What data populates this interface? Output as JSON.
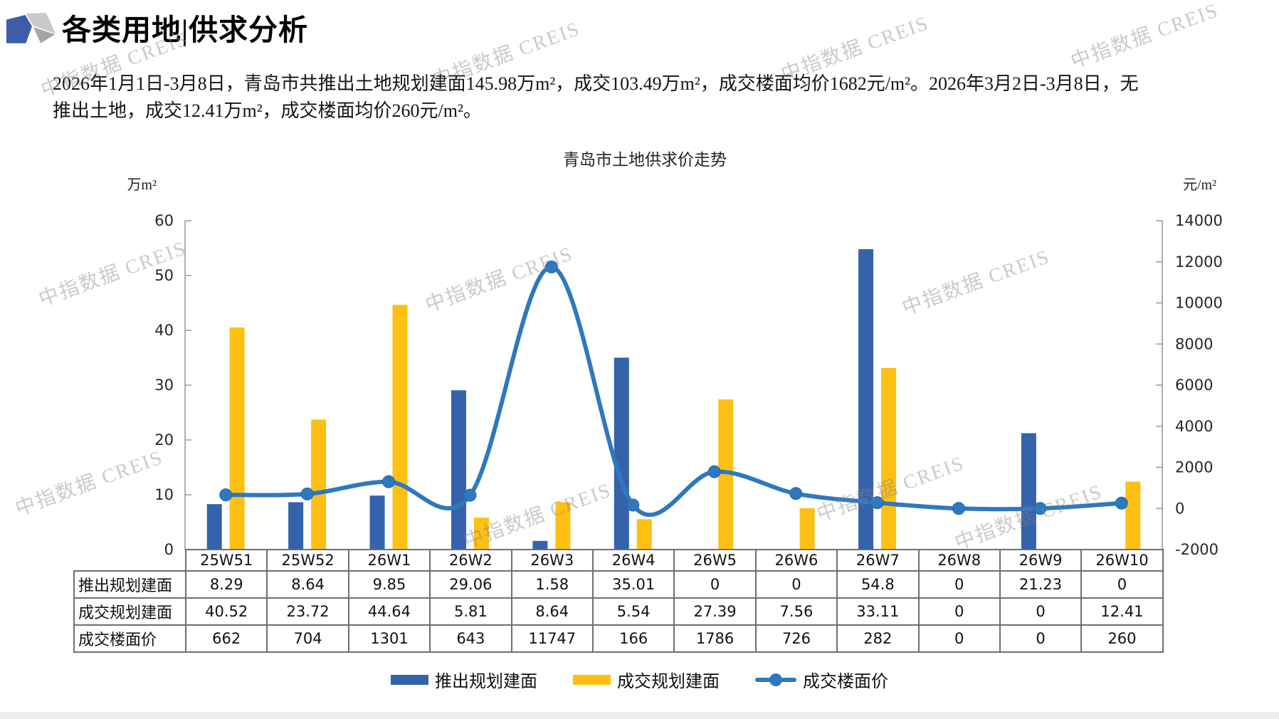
{
  "header": {
    "title": "各类用地|供求分析"
  },
  "description": {
    "lines": [
      "2026年1月1日-3月8日，青岛市共推出土地规划建面145.98万m²，成交103.49万m²，成交楼面均价1682元/m²。2026年3月2日-3月8日，无",
      "推出土地，成交12.41万m²，成交楼面均价260元/m²。"
    ]
  },
  "watermark": {
    "text": "中指数据 CREIS"
  },
  "chart_data": {
    "type": "combo-bar-line",
    "title": "青岛市土地供求价走势",
    "categories": [
      "25W51",
      "25W52",
      "26W1",
      "26W2",
      "26W3",
      "26W4",
      "26W5",
      "26W6",
      "26W7",
      "26W8",
      "26W9",
      "26W10"
    ],
    "left_axis": {
      "unit": "万m²",
      "min": 0,
      "max": 60,
      "ticks": [
        0,
        10,
        20,
        30,
        40,
        50,
        60
      ]
    },
    "right_axis": {
      "unit": "元/m²",
      "min": -2000,
      "max": 14000,
      "ticks": [
        -2000,
        0,
        2000,
        4000,
        6000,
        8000,
        10000,
        12000,
        14000
      ]
    },
    "grid": false,
    "legend_position": "bottom",
    "series": [
      {
        "name": "推出规划建面",
        "type": "bar",
        "axis": "left",
        "color": "#3463AC",
        "values": [
          8.29,
          8.64,
          9.85,
          29.06,
          1.58,
          35.01,
          0,
          0,
          54.8,
          0,
          21.23,
          0
        ]
      },
      {
        "name": "成交规划建面",
        "type": "bar",
        "axis": "left",
        "color": "#FDC013",
        "values": [
          40.52,
          23.72,
          44.64,
          5.81,
          8.64,
          5.54,
          27.39,
          7.56,
          33.11,
          0,
          0,
          12.41
        ]
      },
      {
        "name": "成交楼面价",
        "type": "line",
        "axis": "right",
        "color": "#2E78BE",
        "smooth": true,
        "values": [
          662,
          704,
          1301,
          643,
          11747,
          166,
          1786,
          726,
          282,
          0,
          0,
          260
        ]
      }
    ]
  },
  "table": {
    "rows": [
      {
        "label": "推出规划建面",
        "values": [
          "8.29",
          "8.64",
          "9.85",
          "29.06",
          "1.58",
          "35.01",
          "0",
          "0",
          "54.8",
          "0",
          "21.23",
          "0"
        ]
      },
      {
        "label": "成交规划建面",
        "values": [
          "40.52",
          "23.72",
          "44.64",
          "5.81",
          "8.64",
          "5.54",
          "27.39",
          "7.56",
          "33.11",
          "0",
          "0",
          "12.41"
        ]
      },
      {
        "label": "成交楼面价",
        "values": [
          "662",
          "704",
          "1301",
          "643",
          "11747",
          "166",
          "1786",
          "726",
          "282",
          "0",
          "0",
          "260"
        ]
      }
    ]
  }
}
